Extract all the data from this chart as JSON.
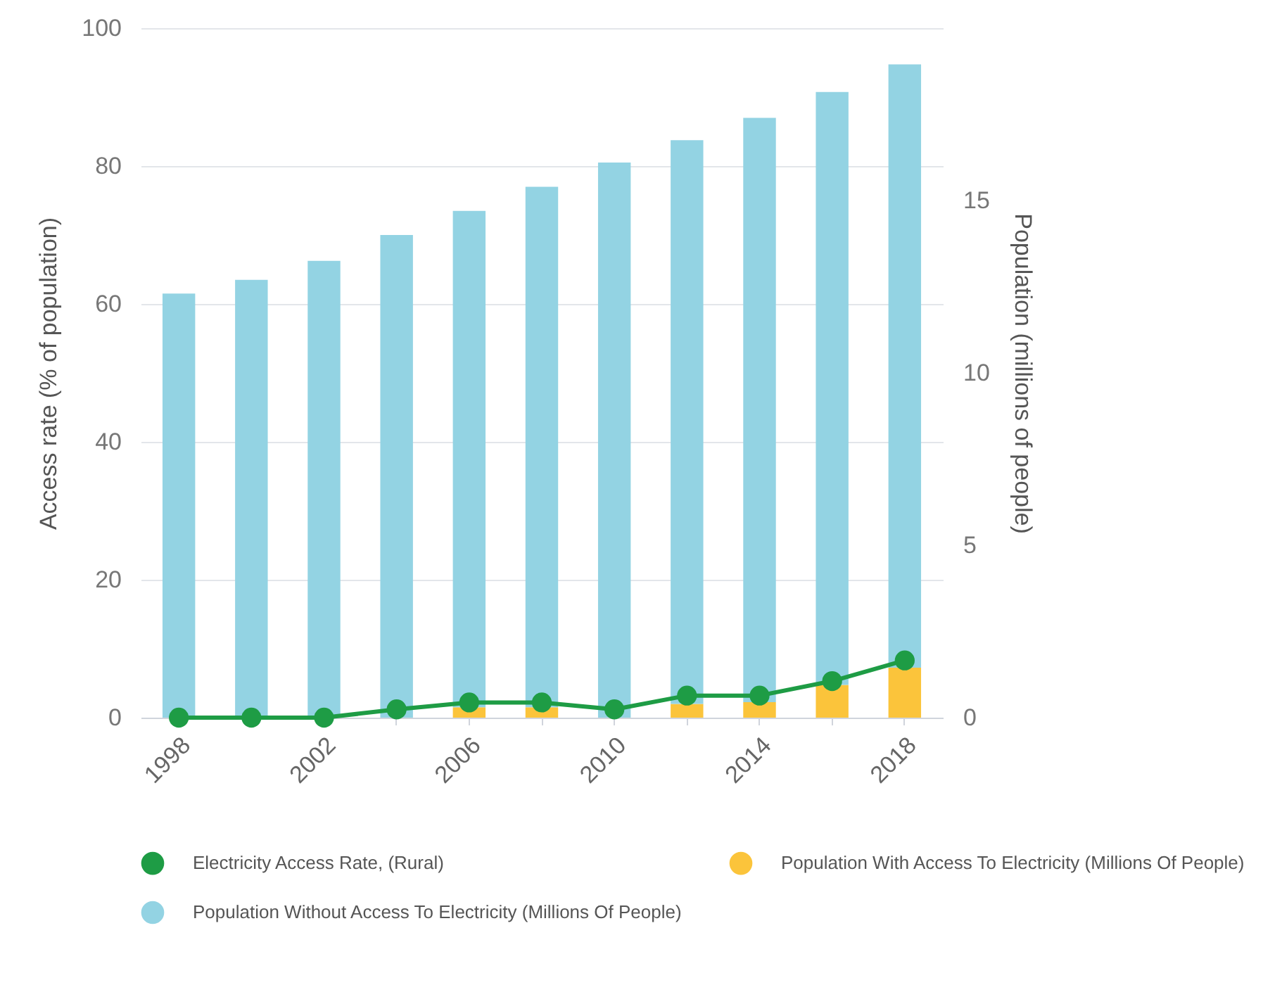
{
  "chart_data": {
    "type": "bar",
    "ylabel": "Access rate (% of population)",
    "y2label": "Population (millions of people)",
    "categories": [
      "1998",
      null,
      "2002",
      null,
      "2006",
      null,
      "2010",
      null,
      "2014",
      null,
      "2018"
    ],
    "series": [
      {
        "name": "Electricity Access Rate, (Rural)",
        "type": "line",
        "color": "#1e9c45",
        "values": [
          0,
          0,
          0,
          1.2,
          2.2,
          2.2,
          1.2,
          3.2,
          3.2,
          5.3,
          8.3
        ]
      },
      {
        "name": "Population With Access To Electricity (Millions Of People)",
        "axis": "y2",
        "color": "#fbc43b",
        "values": [
          0,
          0,
          0,
          0,
          0.3,
          0.3,
          0,
          0.4,
          0.45,
          0.95,
          1.45
        ]
      },
      {
        "name": "Population Without Access To Electricity (Millions Of People)",
        "axis": "y2",
        "color": "#93d3e3",
        "values": [
          12.3,
          12.7,
          13.25,
          14,
          14.4,
          15.1,
          16.1,
          16.35,
          16.95,
          17.2,
          17.5
        ]
      }
    ],
    "stacked": true,
    "ylim": [
      0,
      100
    ],
    "yticks": [
      0,
      20,
      40,
      60,
      80,
      100
    ],
    "y2lim": [
      0,
      20
    ],
    "y2ticks": [
      0,
      5,
      10,
      15
    ],
    "grid": "y",
    "legend": "bottom",
    "marker": "circle",
    "line_style": "solid"
  }
}
